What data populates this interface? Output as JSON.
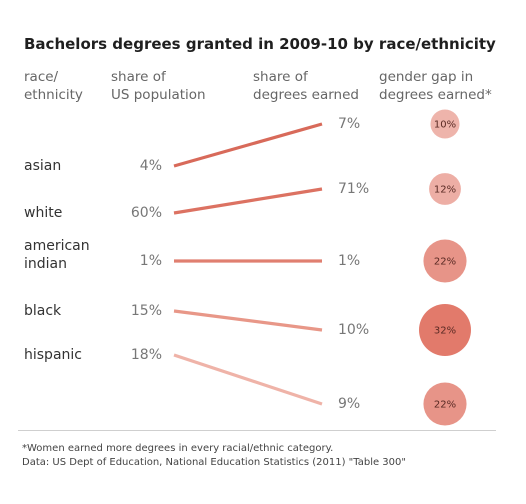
{
  "header": {
    "title": "Bachelors degrees granted in 2009-10 by race/ethnicity",
    "col1": [
      "race/",
      "ethnicity"
    ],
    "col2": [
      "share of",
      "US population"
    ],
    "col3": [
      "share of",
      "degrees earned"
    ],
    "col4": [
      "gender gap in",
      "degrees earned*"
    ]
  },
  "footer": {
    "note": "*Women earned more degrees in every racial/ethnic category.",
    "source": "Data: US Dept of Education, National Education Statistics (2011) \"Table 300\""
  },
  "chart_data": {
    "type": "slope",
    "x": [
      "share of US population",
      "share of degrees earned"
    ],
    "rows": [
      {
        "group": "asian",
        "group_lines": [
          "asian"
        ],
        "population_pct": 4,
        "degrees_pct": 7,
        "gender_gap_pct": 10,
        "color": "#d86a5a"
      },
      {
        "group": "white",
        "group_lines": [
          "white"
        ],
        "population_pct": 60,
        "degrees_pct": 71,
        "gender_gap_pct": 12,
        "color": "#dc7262"
      },
      {
        "group": "american indian",
        "group_lines": [
          "american",
          "indian"
        ],
        "population_pct": 1,
        "degrees_pct": 1,
        "gender_gap_pct": 22,
        "color": "#e07f70"
      },
      {
        "group": "black",
        "group_lines": [
          "black"
        ],
        "population_pct": 15,
        "degrees_pct": 10,
        "gender_gap_pct": 32,
        "color": "#e89788"
      },
      {
        "group": "hispanic",
        "group_lines": [
          "hispanic"
        ],
        "population_pct": 18,
        "degrees_pct": 9,
        "gender_gap_pct": 22,
        "color": "#efb3a8"
      }
    ],
    "bubble_color": "#e07363"
  }
}
